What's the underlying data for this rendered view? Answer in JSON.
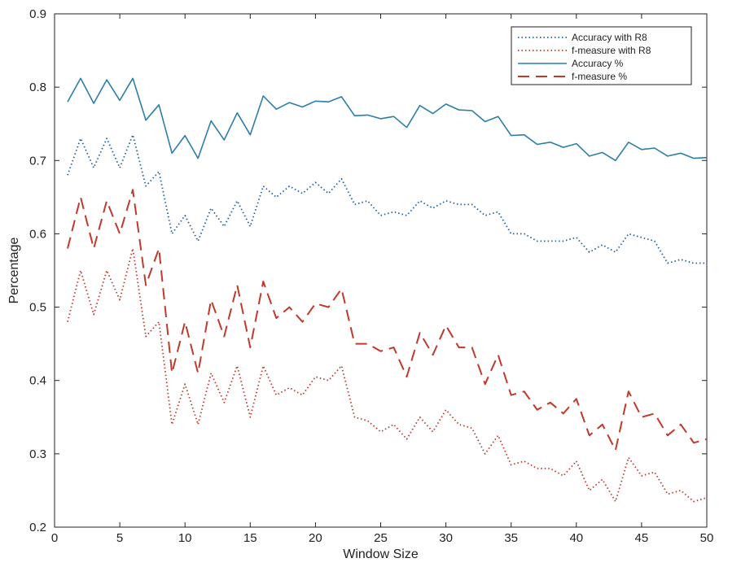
{
  "chart_data": {
    "type": "line",
    "xlabel": "Window Size",
    "ylabel": "Percentage",
    "xlim": [
      0,
      50
    ],
    "ylim": [
      0.2,
      0.9
    ],
    "x_ticks": [
      "0",
      "5",
      "10",
      "15",
      "20",
      "25",
      "30",
      "35",
      "40",
      "45",
      "50"
    ],
    "y_ticks": [
      "0.2",
      "0.3",
      "0.4",
      "0.5",
      "0.6",
      "0.7",
      "0.8",
      "0.9"
    ],
    "grid": false,
    "legend_position": "top-right",
    "x": [
      1,
      2,
      3,
      4,
      5,
      6,
      7,
      8,
      9,
      10,
      11,
      12,
      13,
      14,
      15,
      16,
      17,
      18,
      19,
      20,
      21,
      22,
      23,
      24,
      25,
      26,
      27,
      28,
      29,
      30,
      31,
      32,
      33,
      34,
      35,
      36,
      37,
      38,
      39,
      40,
      41,
      42,
      43,
      44,
      45,
      46,
      47,
      48,
      49,
      50
    ],
    "series": [
      {
        "name": "Accuracy with R8",
        "color": "#1f5fa8",
        "style": "dotted",
        "values": [
          0.68,
          0.73,
          0.69,
          0.73,
          0.69,
          0.735,
          0.665,
          0.685,
          0.6,
          0.625,
          0.59,
          0.635,
          0.61,
          0.645,
          0.61,
          0.665,
          0.65,
          0.665,
          0.655,
          0.67,
          0.655,
          0.675,
          0.64,
          0.645,
          0.625,
          0.63,
          0.625,
          0.645,
          0.635,
          0.645,
          0.64,
          0.64,
          0.625,
          0.63,
          0.6,
          0.6,
          0.59,
          0.59,
          0.59,
          0.595,
          0.575,
          0.585,
          0.575,
          0.6,
          0.595,
          0.59,
          0.56,
          0.565,
          0.56,
          0.56
        ]
      },
      {
        "name": "f-measure  with R8",
        "color": "#c0392b",
        "style": "dotted",
        "values": [
          0.48,
          0.55,
          0.49,
          0.55,
          0.51,
          0.58,
          0.46,
          0.48,
          0.34,
          0.395,
          0.34,
          0.41,
          0.37,
          0.42,
          0.35,
          0.42,
          0.38,
          0.39,
          0.38,
          0.405,
          0.4,
          0.42,
          0.35,
          0.345,
          0.33,
          0.34,
          0.32,
          0.35,
          0.33,
          0.36,
          0.34,
          0.335,
          0.3,
          0.325,
          0.285,
          0.29,
          0.28,
          0.28,
          0.27,
          0.29,
          0.25,
          0.265,
          0.235,
          0.295,
          0.27,
          0.275,
          0.245,
          0.25,
          0.235,
          0.24
        ]
      },
      {
        "name": "Accuracy %",
        "color": "#2a7fa8",
        "style": "solid",
        "values": [
          0.78,
          0.812,
          0.778,
          0.81,
          0.782,
          0.812,
          0.755,
          0.776,
          0.71,
          0.734,
          0.703,
          0.754,
          0.728,
          0.765,
          0.735,
          0.788,
          0.77,
          0.779,
          0.773,
          0.781,
          0.78,
          0.787,
          0.761,
          0.762,
          0.757,
          0.76,
          0.745,
          0.775,
          0.764,
          0.777,
          0.769,
          0.768,
          0.753,
          0.76,
          0.734,
          0.735,
          0.722,
          0.725,
          0.718,
          0.723,
          0.706,
          0.711,
          0.7,
          0.725,
          0.715,
          0.717,
          0.706,
          0.71,
          0.703,
          0.704
        ]
      },
      {
        "name": "f-measure %",
        "color": "#c0392b",
        "style": "dashed",
        "values": [
          0.58,
          0.65,
          0.58,
          0.645,
          0.6,
          0.66,
          0.53,
          0.58,
          0.41,
          0.48,
          0.41,
          0.51,
          0.46,
          0.53,
          0.445,
          0.535,
          0.485,
          0.5,
          0.48,
          0.505,
          0.5,
          0.525,
          0.45,
          0.45,
          0.44,
          0.445,
          0.405,
          0.465,
          0.435,
          0.475,
          0.445,
          0.445,
          0.395,
          0.435,
          0.38,
          0.385,
          0.36,
          0.37,
          0.355,
          0.375,
          0.325,
          0.34,
          0.305,
          0.385,
          0.35,
          0.355,
          0.325,
          0.34,
          0.315,
          0.32
        ]
      }
    ]
  }
}
